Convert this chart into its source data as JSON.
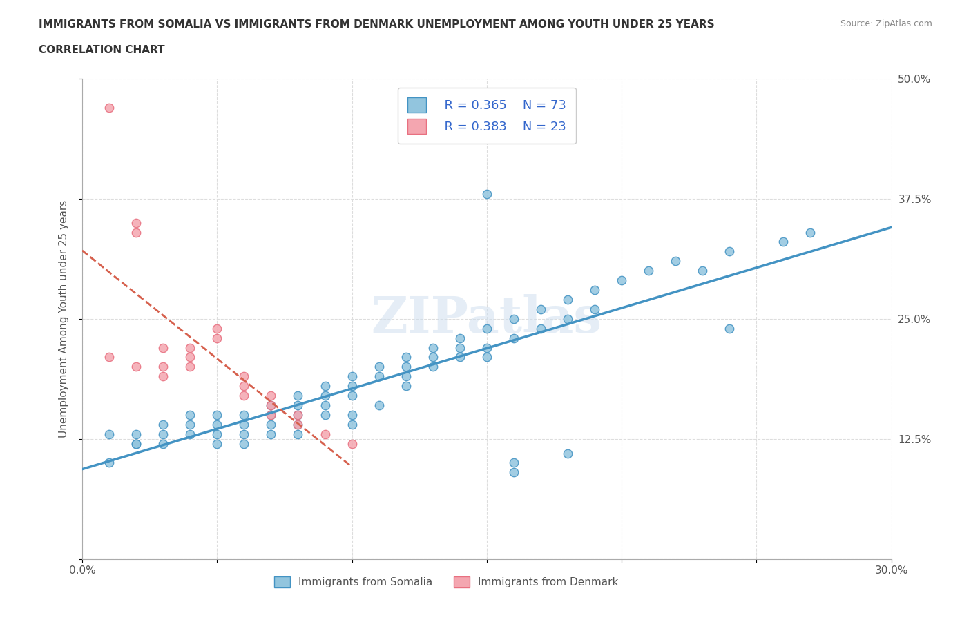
{
  "title_line1": "IMMIGRANTS FROM SOMALIA VS IMMIGRANTS FROM DENMARK UNEMPLOYMENT AMONG YOUTH UNDER 25 YEARS",
  "title_line2": "CORRELATION CHART",
  "source_text": "Source: ZipAtlas.com",
  "xlabel": "",
  "ylabel": "Unemployment Among Youth under 25 years",
  "xlim": [
    0,
    0.3
  ],
  "ylim": [
    0,
    0.5
  ],
  "xticks": [
    0.0,
    0.05,
    0.1,
    0.15,
    0.2,
    0.25,
    0.3
  ],
  "yticks": [
    0.0,
    0.125,
    0.25,
    0.375,
    0.5
  ],
  "xticklabels": [
    "0.0%",
    "",
    "",
    "",
    "",
    "",
    "30.0%"
  ],
  "yticklabels": [
    "",
    "12.5%",
    "25.0%",
    "37.5%",
    "50.0%"
  ],
  "watermark": "ZIPatlas",
  "legend_r1": "R = 0.365",
  "legend_n1": "N = 73",
  "legend_r2": "R = 0.383",
  "legend_n2": "N = 23",
  "color_somalia": "#92c5de",
  "color_denmark": "#f4a6b0",
  "color_somalia_line": "#4393c3",
  "color_denmark_line": "#d6604d",
  "color_text_blue": "#3366cc",
  "somalia_x": [
    0.02,
    0.01,
    0.01,
    0.02,
    0.02,
    0.03,
    0.03,
    0.03,
    0.04,
    0.04,
    0.04,
    0.05,
    0.05,
    0.05,
    0.05,
    0.06,
    0.06,
    0.06,
    0.06,
    0.07,
    0.07,
    0.07,
    0.07,
    0.08,
    0.08,
    0.08,
    0.08,
    0.08,
    0.09,
    0.09,
    0.09,
    0.09,
    0.1,
    0.1,
    0.1,
    0.1,
    0.1,
    0.11,
    0.11,
    0.11,
    0.12,
    0.12,
    0.12,
    0.12,
    0.13,
    0.13,
    0.13,
    0.14,
    0.14,
    0.14,
    0.15,
    0.15,
    0.15,
    0.16,
    0.16,
    0.17,
    0.17,
    0.18,
    0.18,
    0.19,
    0.19,
    0.2,
    0.21,
    0.22,
    0.23,
    0.24,
    0.15,
    0.26,
    0.27,
    0.16,
    0.18,
    0.24,
    0.16
  ],
  "somalia_y": [
    0.12,
    0.1,
    0.13,
    0.13,
    0.12,
    0.12,
    0.13,
    0.14,
    0.14,
    0.13,
    0.15,
    0.13,
    0.14,
    0.15,
    0.12,
    0.14,
    0.15,
    0.13,
    0.12,
    0.15,
    0.14,
    0.16,
    0.13,
    0.16,
    0.15,
    0.14,
    0.17,
    0.13,
    0.17,
    0.18,
    0.16,
    0.15,
    0.18,
    0.17,
    0.19,
    0.15,
    0.14,
    0.19,
    0.2,
    0.16,
    0.21,
    0.2,
    0.19,
    0.18,
    0.21,
    0.22,
    0.2,
    0.22,
    0.21,
    0.23,
    0.22,
    0.24,
    0.21,
    0.23,
    0.25,
    0.24,
    0.26,
    0.25,
    0.27,
    0.26,
    0.28,
    0.29,
    0.3,
    0.31,
    0.3,
    0.32,
    0.38,
    0.33,
    0.34,
    0.09,
    0.11,
    0.24,
    0.1
  ],
  "denmark_x": [
    0.01,
    0.01,
    0.02,
    0.02,
    0.02,
    0.03,
    0.03,
    0.03,
    0.04,
    0.04,
    0.04,
    0.05,
    0.05,
    0.06,
    0.06,
    0.06,
    0.07,
    0.07,
    0.07,
    0.08,
    0.08,
    0.09,
    0.1
  ],
  "denmark_y": [
    0.47,
    0.21,
    0.35,
    0.34,
    0.2,
    0.22,
    0.2,
    0.19,
    0.2,
    0.21,
    0.22,
    0.23,
    0.24,
    0.18,
    0.19,
    0.17,
    0.16,
    0.15,
    0.17,
    0.14,
    0.15,
    0.13,
    0.12
  ],
  "background_color": "#ffffff",
  "grid_color": "#dddddd"
}
